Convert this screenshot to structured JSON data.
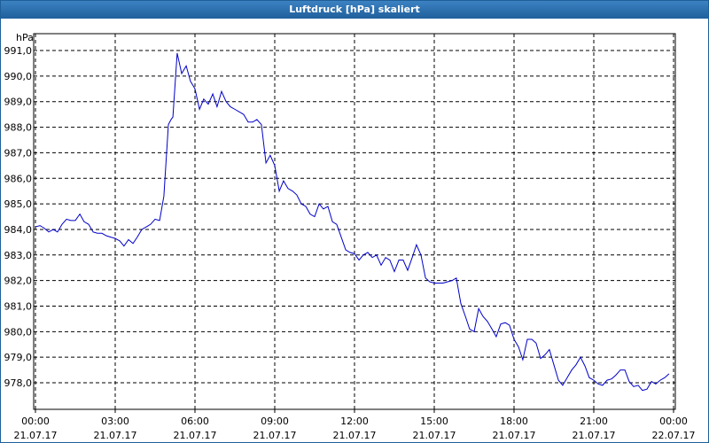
{
  "window_title": "Luftdruck [hPa] skaliert",
  "chart_data": {
    "type": "line",
    "y_unit": "hPa",
    "xlim": [
      0,
      24
    ],
    "ylim": [
      976.96,
      991.66
    ],
    "xticks": [
      {
        "value": 0,
        "label": "00:00"
      },
      {
        "value": 3,
        "label": "03:00"
      },
      {
        "value": 6,
        "label": "06:00"
      },
      {
        "value": 9,
        "label": "09:00"
      },
      {
        "value": 12,
        "label": "12:00"
      },
      {
        "value": 15,
        "label": "15:00"
      },
      {
        "value": 18,
        "label": "18:00"
      },
      {
        "value": 21,
        "label": "21:00"
      },
      {
        "value": 24,
        "label": "00:00"
      }
    ],
    "xtick_dates": [
      "21.07.17",
      "21.07.17",
      "21.07.17",
      "21.07.17",
      "21.07.17",
      "21.07.17",
      "21.07.17",
      "21.07.17",
      "22.07.17"
    ],
    "yticks": [
      {
        "value": 978,
        "label": "978,0"
      },
      {
        "value": 979,
        "label": "979,0"
      },
      {
        "value": 980,
        "label": "980,0"
      },
      {
        "value": 981,
        "label": "981,0"
      },
      {
        "value": 982,
        "label": "982,0"
      },
      {
        "value": 983,
        "label": "983,0"
      },
      {
        "value": 984,
        "label": "984,0"
      },
      {
        "value": 985,
        "label": "985,0"
      },
      {
        "value": 986,
        "label": "986,0"
      },
      {
        "value": 987,
        "label": "987,0"
      },
      {
        "value": 988,
        "label": "988,0"
      },
      {
        "value": 989,
        "label": "989,0"
      },
      {
        "value": 990,
        "label": "990,0"
      },
      {
        "value": 991,
        "label": "991,0"
      }
    ],
    "grid": true,
    "x": [
      0,
      0.17,
      0.33,
      0.5,
      0.67,
      0.83,
      1,
      1.17,
      1.33,
      1.5,
      1.67,
      1.83,
      2,
      2.17,
      2.33,
      2.5,
      2.67,
      2.83,
      3,
      3.17,
      3.33,
      3.5,
      3.67,
      3.83,
      4,
      4.17,
      4.33,
      4.5,
      4.67,
      4.83,
      5,
      5.1,
      5.17,
      5.33,
      5.5,
      5.67,
      5.83,
      6,
      6.17,
      6.33,
      6.5,
      6.67,
      6.83,
      7,
      7.17,
      7.33,
      7.5,
      7.67,
      7.83,
      8,
      8.17,
      8.33,
      8.5,
      8.67,
      8.83,
      9,
      9.17,
      9.33,
      9.5,
      9.67,
      9.83,
      10,
      10.17,
      10.33,
      10.5,
      10.67,
      10.83,
      11,
      11.17,
      11.33,
      11.5,
      11.67,
      11.83,
      12,
      12.17,
      12.33,
      12.5,
      12.67,
      12.83,
      13,
      13.17,
      13.33,
      13.5,
      13.67,
      13.83,
      14,
      14.17,
      14.33,
      14.5,
      14.67,
      14.83,
      15,
      15.33,
      15.67,
      15.83,
      16,
      16.17,
      16.33,
      16.5,
      16.67,
      16.83,
      17,
      17.17,
      17.33,
      17.5,
      17.67,
      17.83,
      18,
      18.17,
      18.33,
      18.5,
      18.67,
      18.83,
      19,
      19.17,
      19.33,
      19.5,
      19.67,
      19.83,
      20,
      20.17,
      20.33,
      20.5,
      20.67,
      20.83,
      21,
      21.17,
      21.33,
      21.5,
      21.67,
      21.83,
      22,
      22.17,
      22.33,
      22.5,
      22.67,
      22.83,
      23,
      23.17,
      23.33,
      23.5,
      23.67,
      23.83
    ],
    "series": [
      {
        "color": "#0000c8",
        "values": [
          984.1,
          984.15,
          984.05,
          983.9,
          984.0,
          983.9,
          984.2,
          984.4,
          984.35,
          984.35,
          984.6,
          984.3,
          984.2,
          983.9,
          983.85,
          983.85,
          983.75,
          983.7,
          983.65,
          983.55,
          983.35,
          983.6,
          983.45,
          983.7,
          984.0,
          984.1,
          984.2,
          984.4,
          984.35,
          985.3,
          988.1,
          988.3,
          988.4,
          990.9,
          990.1,
          990.4,
          989.8,
          989.5,
          988.7,
          989.1,
          988.9,
          989.3,
          988.8,
          989.4,
          989.0,
          988.8,
          988.7,
          988.6,
          988.5,
          988.2,
          988.2,
          988.3,
          988.1,
          986.6,
          986.9,
          986.5,
          985.5,
          985.9,
          985.6,
          985.5,
          985.35,
          985.0,
          984.9,
          984.6,
          984.5,
          985.0,
          984.8,
          984.9,
          984.3,
          984.2,
          983.7,
          983.2,
          983.1,
          983.05,
          982.8,
          983.0,
          983.1,
          982.9,
          983.0,
          982.6,
          982.9,
          982.8,
          982.35,
          982.8,
          982.8,
          982.4,
          982.9,
          983.4,
          983.0,
          982.1,
          981.95,
          981.9,
          981.9,
          982.0,
          982.1,
          981.1,
          980.6,
          980.1,
          980.0,
          980.9,
          980.6,
          980.4,
          980.1,
          979.8,
          980.3,
          980.35,
          980.25,
          979.7,
          979.4,
          978.9,
          979.7,
          979.7,
          979.55,
          978.95,
          979.1,
          979.3,
          978.7,
          978.1,
          977.9,
          978.2,
          978.5,
          978.7,
          979.0,
          978.65,
          978.2,
          978.1,
          977.95,
          977.9,
          978.1,
          978.15,
          978.3,
          978.5,
          978.5,
          978.05,
          977.85,
          977.9,
          977.7,
          977.75,
          978.05,
          977.95,
          978.1,
          978.2,
          978.35
        ]
      }
    ]
  }
}
